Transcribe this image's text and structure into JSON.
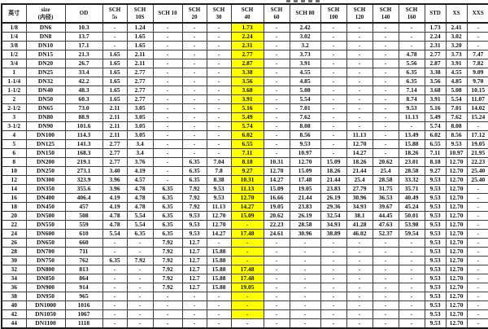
{
  "table": {
    "highlighted_column": "SCH 40",
    "highlight_color": "#FFFF00",
    "columns": [
      "英寸",
      "size\n(内径)",
      "OD",
      "SCH\n5s",
      "SCH\n10S",
      "SCH  10",
      "SCH\n20",
      "SCH\n30",
      "SCH\n40",
      "SCH\n60",
      "SCH  80",
      "SCH\n100",
      "SCH\n120",
      "SCH\n140",
      "SCH\n160",
      "STD",
      "XS",
      "XXS"
    ],
    "rows": [
      [
        "1/8",
        "DN6",
        "10.3",
        "-",
        "1.24",
        "-",
        "-",
        "-",
        "1.73",
        "-",
        "2.42",
        "-",
        "-",
        "-",
        "-",
        "1.73",
        "2.41",
        "-"
      ],
      [
        "1/4",
        "DN8",
        "13.7",
        "-",
        "1.65",
        "-",
        "-",
        "-",
        "2.24",
        "-",
        "3.02",
        "-",
        "-",
        "-",
        "-",
        "2.24",
        "3.02",
        "-"
      ],
      [
        "3/8",
        "DN10",
        "17.1",
        "-",
        "1.65",
        "-",
        "-",
        "-",
        "2.31",
        "-",
        "3.2",
        "-",
        "-",
        "-",
        "-",
        "2.31",
        "3.20",
        "-"
      ],
      [
        "1/2",
        "DN15",
        "21.3",
        "1.65",
        "2.11",
        "-",
        "-",
        "-",
        "2.77",
        "-",
        "3.73",
        "-",
        "-",
        "-",
        "4.78",
        "2.77",
        "3.73",
        "7.47"
      ],
      [
        "3/4",
        "DN20",
        "26.7",
        "1.65",
        "2.11",
        "-",
        "-",
        "-",
        "2.87",
        "-",
        "3.91",
        "-",
        "-",
        "-",
        "5.56",
        "2.87",
        "3.91",
        "7.82"
      ],
      [
        "1",
        "DN25",
        "33.4",
        "1.65",
        "2.77",
        "-",
        "-",
        "-",
        "3.38",
        "-",
        "4.55",
        "-",
        "-",
        "-",
        "6.35",
        "3.38",
        "4.55",
        "9.09"
      ],
      [
        "1-1/4",
        "DN32",
        "42.2",
        "1.65",
        "2.77",
        "-",
        "-",
        "-",
        "3.56",
        "-",
        "4.85",
        "-",
        "-",
        "-",
        "6.35",
        "3.56",
        "4.85",
        "9.70"
      ],
      [
        "1-1/2",
        "DN40",
        "48.3",
        "1.65",
        "2.77",
        "-",
        "-",
        "-",
        "3.68",
        "-",
        "5.08",
        "-",
        "-",
        "-",
        "7.14",
        "3.68",
        "5.08",
        "10.15"
      ],
      [
        "2",
        "DN50",
        "60.3",
        "1.65",
        "2.77",
        "-",
        "-",
        "-",
        "3.91",
        "-",
        "5.54",
        "-",
        "-",
        "-",
        "8.74",
        "3.91",
        "5.54",
        "11.07"
      ],
      [
        "2-1/2",
        "DN65",
        "73.0",
        "2.11",
        "3.05",
        "-",
        "-",
        "-",
        "5.16",
        "-",
        "7.01",
        "-",
        "-",
        "-",
        "9.53",
        "5.16",
        "7.01",
        "14.02"
      ],
      [
        "3",
        "DN80",
        "88.9",
        "2.11",
        "3.05",
        "-",
        "-",
        "-",
        "5.49",
        "-",
        "7.62",
        "-",
        "-",
        "-",
        "11.13",
        "5.49",
        "7.62",
        "15.24"
      ],
      [
        "3-1/2",
        "DN90",
        "101.6",
        "2.11",
        "3.05",
        "-",
        "-",
        "-",
        "5.74",
        "-",
        "8.08",
        "-",
        "-",
        "-",
        "-",
        "5.74",
        "8.08",
        "-"
      ],
      [
        "4",
        "DN100",
        "114.3",
        "2.11",
        "3.05",
        "-",
        "-",
        "-",
        "6.02",
        "-",
        "8.56",
        "-",
        "11.13",
        "-",
        "13.49",
        "6.02",
        "8.56",
        "17.12"
      ],
      [
        "5",
        "DN125",
        "141.3",
        "2.77",
        "3.4",
        "-",
        "-",
        "-",
        "6.55",
        "-",
        "9.53",
        "-",
        "12.70",
        "-",
        "15.88",
        "6.55",
        "9.53",
        "19.05"
      ],
      [
        "6",
        "DN150",
        "168.3",
        "2.77",
        "3.4",
        "-",
        "-",
        "-",
        "7.11",
        "-",
        "10.97",
        "-",
        "14.27",
        "-",
        "18.26",
        "7.11",
        "10.97",
        "21.95"
      ],
      [
        "8",
        "DN200",
        "219.1",
        "2.77",
        "3.76",
        "-",
        "6.35",
        "7.04",
        "8.18",
        "10.31",
        "12.70",
        "15.09",
        "18.26",
        "20.62",
        "23.01",
        "8.18",
        "12.70",
        "22.23"
      ],
      [
        "10",
        "DN250",
        "273.1",
        "3.40",
        "4.19",
        "-",
        "6.35",
        "7.8",
        "9.27",
        "12.70",
        "15.09",
        "18.26",
        "21.44",
        "25.4",
        "28.58",
        "9.27",
        "12.70",
        "25.40"
      ],
      [
        "12",
        "DN300",
        "323.9",
        "3.96",
        "4.57",
        "-",
        "6.35",
        "8.38",
        "10.31",
        "14.27",
        "17.48",
        "21.44",
        "25.4",
        "28.58",
        "33.32",
        "9.53",
        "12.70",
        "25.40"
      ],
      [
        "14",
        "DN350",
        "355.6",
        "3.96",
        "4.78",
        "6.35",
        "7.92",
        "9.53",
        "11.13",
        "15.09",
        "19.05",
        "23.83",
        "27.79",
        "31.75",
        "35.71",
        "9.53",
        "12.70",
        "-"
      ],
      [
        "16",
        "DN400",
        "406.4",
        "4.19",
        "4.78",
        "6.35",
        "7.92",
        "9.53",
        "12.70",
        "16.66",
        "21.44",
        "26.19",
        "30.96",
        "36.53",
        "40.49",
        "9.53",
        "12.70",
        "-"
      ],
      [
        "18",
        "DN450",
        "457",
        "4.19",
        "4.78",
        "6.35",
        "7.92",
        "11.13",
        "14.27",
        "19.05",
        "23.83",
        "29.36",
        "34.93",
        "39.67",
        "45.24",
        "9.53",
        "12.70",
        "-"
      ],
      [
        "20",
        "DN500",
        "508",
        "4.78",
        "5.54",
        "6.35",
        "9.53",
        "12.70",
        "15.09",
        "20.62",
        "26.19",
        "32.54",
        "38.1",
        "44.45",
        "50.01",
        "9.53",
        "12.70",
        "-"
      ],
      [
        "22",
        "DN550",
        "559",
        "4.78",
        "5.54",
        "6.35",
        "9.53",
        "12.70",
        "-",
        "22.23",
        "28.58",
        "34.93",
        "41.28",
        "47.63",
        "53.98",
        "9.53",
        "12.70",
        "-"
      ],
      [
        "24",
        "DN600",
        "610",
        "5.54",
        "6.35",
        "6.35",
        "9.53",
        "14.27",
        "17.48",
        "24.61",
        "30.96",
        "38.89",
        "46.02",
        "52.37",
        "59.54",
        "9.53",
        "12.70",
        "-"
      ],
      [
        "26",
        "DN650",
        "660",
        "-",
        "-",
        "7.92",
        "12.7",
        "-",
        "-",
        "-",
        "-",
        "-",
        "-",
        "-",
        "-",
        "9.53",
        "12.70",
        "-"
      ],
      [
        "28",
        "DN700",
        "711",
        "-",
        "-",
        "7.92",
        "12.7",
        "15.88",
        "-",
        "-",
        "-",
        "-",
        "-",
        "-",
        "-",
        "9.53",
        "12.70",
        "-"
      ],
      [
        "30",
        "DN750",
        "762",
        "6.35",
        "7.92",
        "7.92",
        "12.7",
        "15.88",
        "-",
        "-",
        "-",
        "-",
        "-",
        "-",
        "-",
        "9.53",
        "12.70",
        "-"
      ],
      [
        "32",
        "DN800",
        "813",
        "-",
        "-",
        "7.92",
        "12.7",
        "15.88",
        "17.48",
        "-",
        "-",
        "-",
        "-",
        "-",
        "-",
        "9.53",
        "12.70",
        "-"
      ],
      [
        "34",
        "DN850",
        "864",
        "-",
        "-",
        "7.92",
        "12.7",
        "15.88",
        "17.48",
        "-",
        "-",
        "-",
        "-",
        "-",
        "-",
        "9.53",
        "12.70",
        "-"
      ],
      [
        "36",
        "DN900",
        "914",
        "-",
        "-",
        "7.92",
        "12.7",
        "15.88",
        "19.05",
        "-",
        "-",
        "-",
        "-",
        "-",
        "-",
        "9.53",
        "12.70",
        "-"
      ],
      [
        "38",
        "DN950",
        "965",
        "-",
        "-",
        "-",
        "-",
        "-",
        "-",
        "-",
        "-",
        "-",
        "-",
        "-",
        "-",
        "9.53",
        "12.70",
        "-"
      ],
      [
        "40",
        "DN1000",
        "1016",
        "-",
        "-",
        "-",
        "-",
        "-",
        "-",
        "-",
        "-",
        "-",
        "-",
        "-",
        "-",
        "9.53",
        "12.70",
        "-"
      ],
      [
        "42",
        "DN1050",
        "1067",
        "-",
        "-",
        "-",
        "-",
        "-",
        "-",
        "-",
        "-",
        "-",
        "-",
        "-",
        "-",
        "9.53",
        "12.70",
        "-"
      ],
      [
        "44",
        "DN1100",
        "1118",
        "-",
        "-",
        "-",
        "-",
        "-",
        "-",
        "-",
        "-",
        "-",
        "-",
        "-",
        "-",
        "9.53",
        "12.70",
        "-"
      ]
    ]
  }
}
